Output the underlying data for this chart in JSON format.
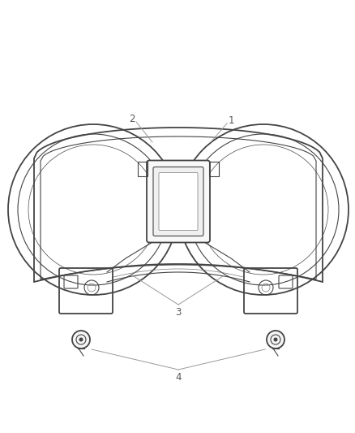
{
  "bg_color": "#ffffff",
  "line_color": "#444444",
  "line_color2": "#777777",
  "label_color": "#555555",
  "fig_width": 4.38,
  "fig_height": 5.33,
  "dpi": 100,
  "label_fontsize": 8.5
}
